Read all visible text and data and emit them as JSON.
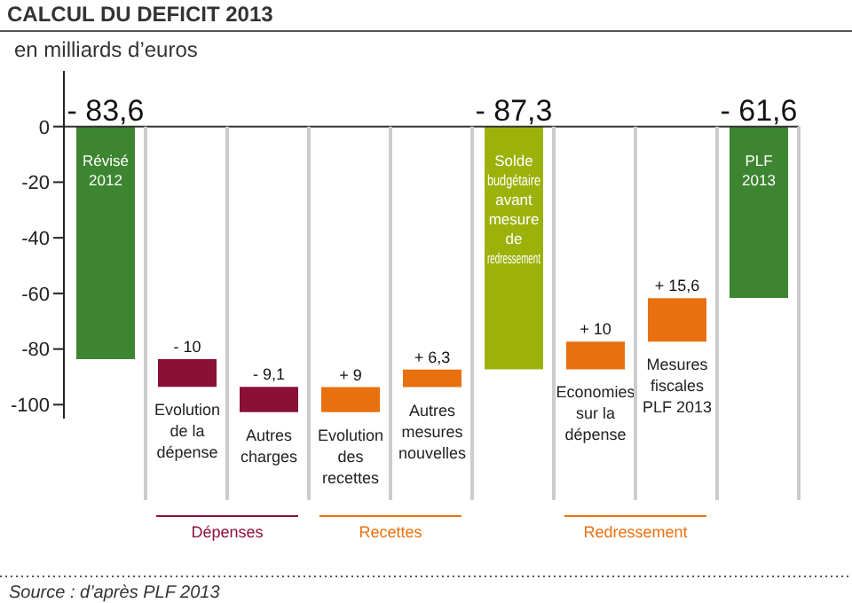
{
  "chart_data": {
    "type": "bar",
    "title": "CALCUL DU DEFICIT 2013",
    "subtitle": "en milliards d’euros",
    "categories": [
      "Révisé 2012",
      "Evolution de la dépense",
      "Autres charges",
      "Evolution des recettes",
      "Autres mesures nouvelles",
      "Solde budgétaire avant mesure de redressement",
      "Economies sur la dépense",
      "Mesures fiscales PLF 2013",
      "PLF 2013"
    ],
    "values": [
      -83.6,
      -10,
      -9.1,
      9,
      6.3,
      -87.3,
      10,
      15.6,
      -61.6
    ],
    "base": [
      0,
      -83.6,
      -93.6,
      -102.7,
      -93.7,
      0,
      -87.3,
      -77.3,
      0
    ],
    "colors": [
      "#3d8530",
      "#8a1038",
      "#8a1038",
      "#e8700f",
      "#e8700f",
      "#9cb20a",
      "#e8700f",
      "#e8700f",
      "#3d8530"
    ],
    "value_labels": [
      "- 83,6",
      "- 10",
      "- 9,1",
      "+ 9",
      "+ 6,3",
      "- 87,3",
      "+ 10",
      "+ 15,6",
      "- 61,6"
    ],
    "ylim": [
      -105,
      20
    ],
    "yticks": [
      0,
      -20,
      -40,
      -60,
      -80,
      -100
    ],
    "ref_lines": [
      {
        "axis": "y",
        "value": 0,
        "color": "#333333"
      }
    ],
    "grid": "x",
    "annotations": [
      "Dépenses",
      "Recettes",
      "Redressement",
      "Source : d’après PLF 2013"
    ]
  }
}
